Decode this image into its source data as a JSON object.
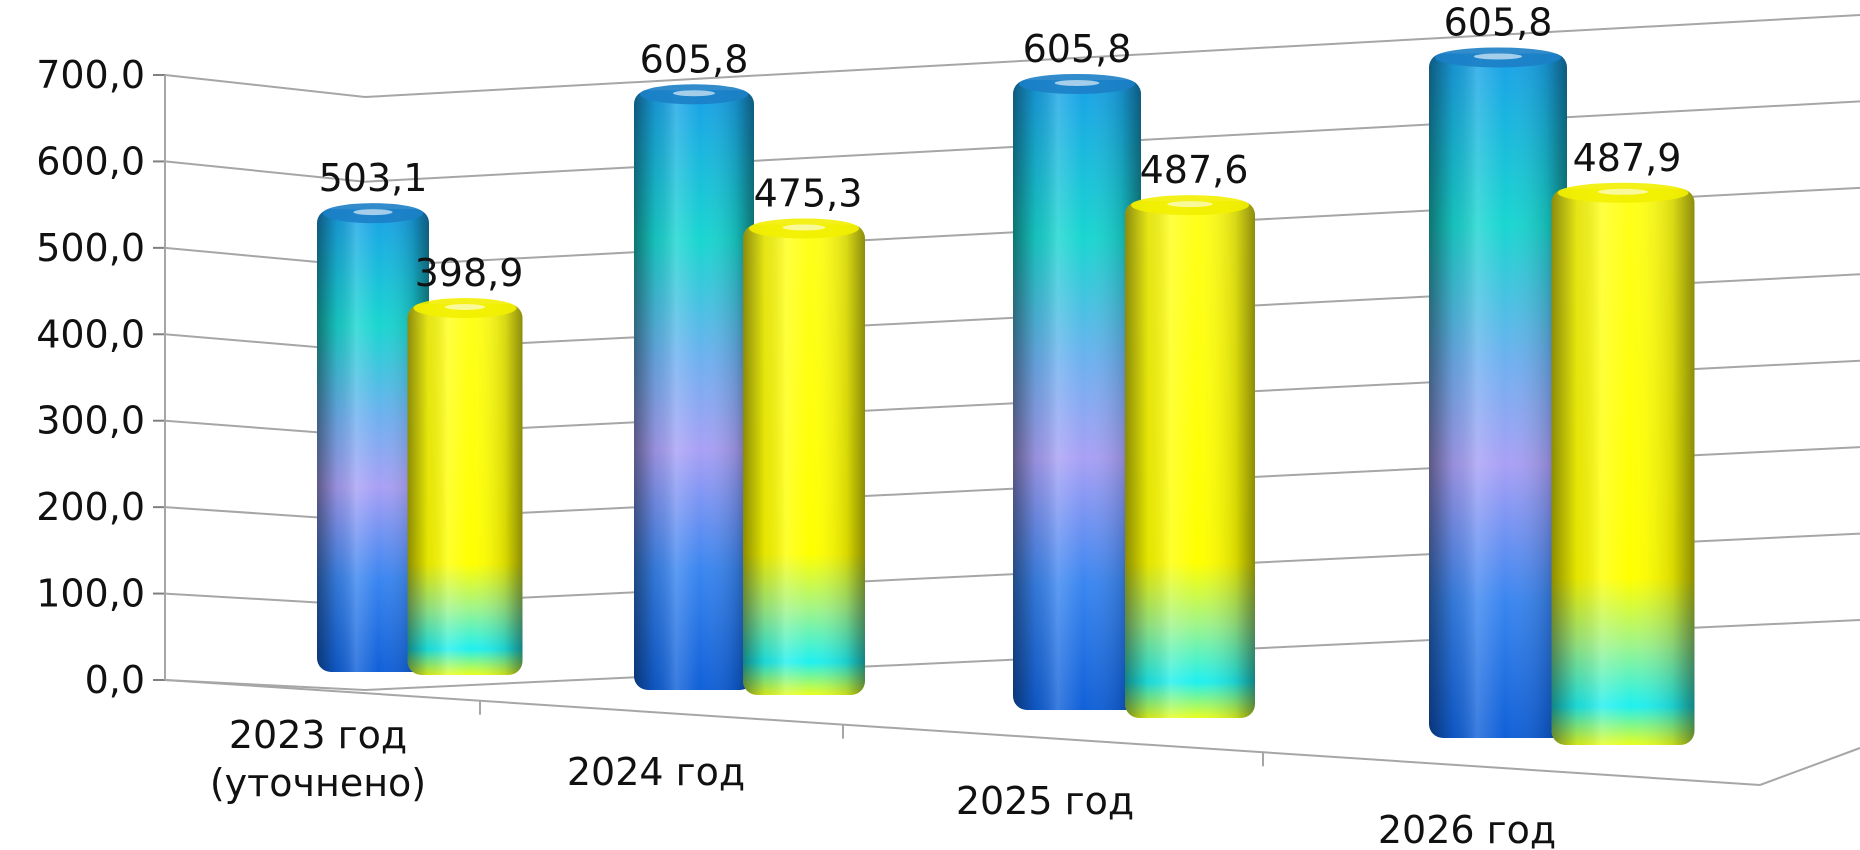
{
  "chart_data": {
    "type": "bar",
    "style": "3d-cylinder",
    "categories": [
      "2023 год\n(уточнено)",
      "2024 год",
      "2025 год",
      "2026 год"
    ],
    "series": [
      {
        "values": [
          503.1,
          605.8,
          605.8,
          605.8
        ],
        "color": "#1E90FF"
      },
      {
        "values": [
          398.9,
          475.3,
          487.6,
          487.9
        ],
        "color": "#FFFF00"
      }
    ],
    "data_labels": [
      [
        "503,1",
        "605,8",
        "605,8",
        "605,8"
      ],
      [
        "398,9",
        "475,3",
        "487,6",
        "487,9"
      ]
    ],
    "y_ticks": [
      "0,0",
      "100,0",
      "200,0",
      "300,0",
      "400,0",
      "500,0",
      "600,0",
      "700,0"
    ],
    "ylim": [
      0,
      700
    ],
    "grid": true,
    "legend": "none",
    "title": "",
    "xlabel": "",
    "ylabel": ""
  }
}
